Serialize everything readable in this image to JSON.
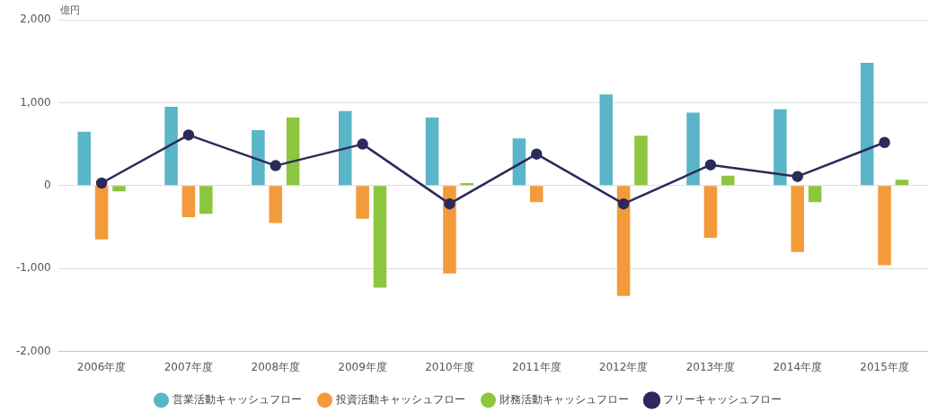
{
  "chart_data": {
    "type": "bar",
    "ylabel": "億円",
    "categories": [
      "2006年度",
      "2007年度",
      "2008年度",
      "2009年度",
      "2010年度",
      "2011年度",
      "2012年度",
      "2013年度",
      "2014年度",
      "2015年度"
    ],
    "series": [
      {
        "name": "営業活動キャッシュフロー",
        "color": "#5bb5c8",
        "values": [
          650,
          950,
          670,
          900,
          820,
          570,
          1100,
          880,
          920,
          1480
        ]
      },
      {
        "name": "投資活動キャッシュフロー",
        "color": "#f39a3a",
        "values": [
          -650,
          -380,
          -450,
          -400,
          -1060,
          -200,
          -1330,
          -630,
          -800,
          -960
        ]
      },
      {
        "name": "財務活動キャッシュフロー",
        "color": "#8cc63f",
        "values": [
          -70,
          -340,
          820,
          -1230,
          30,
          0,
          600,
          120,
          -200,
          70
        ]
      },
      {
        "name": "フリーキャッシュフロー",
        "type": "line",
        "color": "#2b2a5a",
        "marker": "circle",
        "values": [
          30,
          610,
          240,
          500,
          -220,
          380,
          -220,
          250,
          110,
          520
        ]
      }
    ],
    "ylim": [
      -2000,
      2000
    ],
    "yticks": [
      {
        "value": -2000,
        "label": "-2,000"
      },
      {
        "value": -1000,
        "label": "-1,000"
      },
      {
        "value": 0,
        "label": "0"
      },
      {
        "value": 1000,
        "label": "1,000"
      },
      {
        "value": 2000,
        "label": "2,000"
      }
    ],
    "grid": "y",
    "legend": "bottom"
  }
}
